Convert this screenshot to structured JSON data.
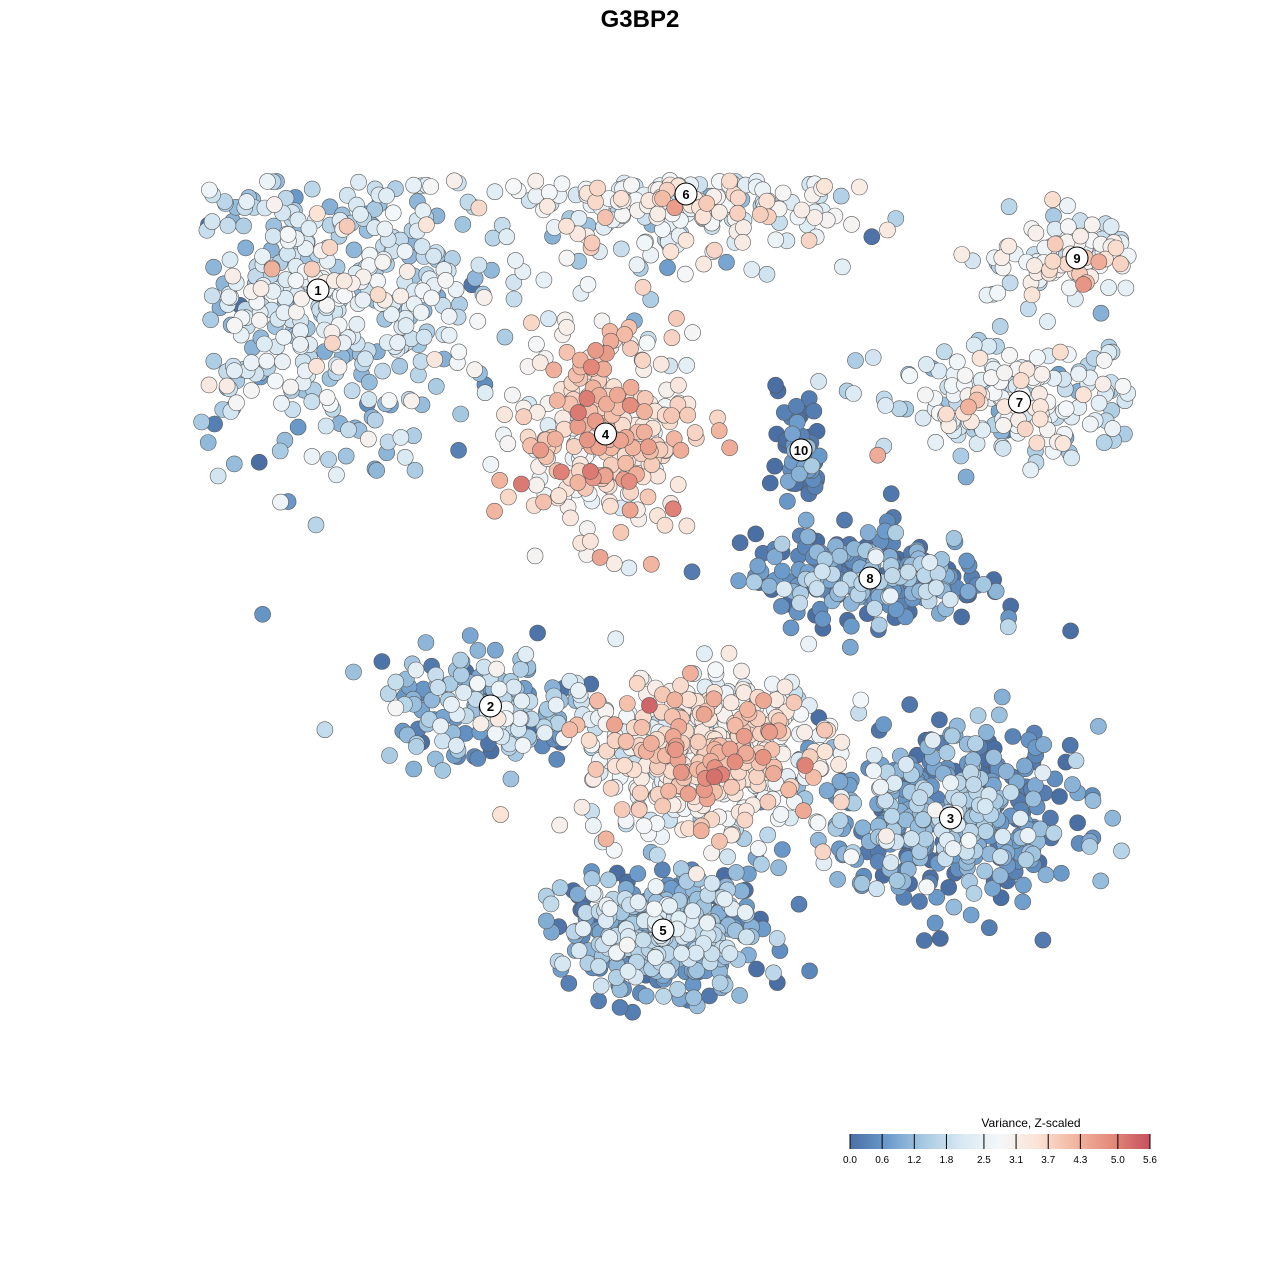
{
  "chart_data": {
    "type": "scatter",
    "title": "G3BP2",
    "xlabel": "",
    "ylabel": "",
    "grid": false,
    "axes_visible": false,
    "color_scale": {
      "title": "Variance, Z-scaled",
      "min": 0.0,
      "max": 5.6,
      "ticks": [
        "0.0",
        "0.6",
        "1.2",
        "1.8",
        "2.5",
        "3.1",
        "3.7",
        "4.3",
        "5.0",
        "5.6"
      ],
      "colors": [
        "#4a6fa5",
        "#6b9bcb",
        "#a9cbe3",
        "#d9e9f3",
        "#f4f7f9",
        "#fbe3d6",
        "#f2b6a0",
        "#e3897a",
        "#c6505d"
      ]
    },
    "legend_position": "bottom-right",
    "clusters": [
      {
        "label": "1",
        "x": -2.8,
        "y": 2.0,
        "value_mean": 2.2,
        "spread": [
          2.0,
          1.2
        ],
        "n": 520
      },
      {
        "label": "6",
        "x": 0.4,
        "y": 2.6,
        "value_mean": 2.8,
        "spread": [
          1.6,
          0.5
        ],
        "n": 330
      },
      {
        "label": "4",
        "x": -0.3,
        "y": 1.1,
        "value_mean": 3.8,
        "spread": [
          0.9,
          0.75
        ],
        "n": 280
      },
      {
        "label": "10",
        "x": 1.4,
        "y": 1.0,
        "value_mean": 0.5,
        "spread": [
          0.25,
          0.45
        ],
        "n": 60
      },
      {
        "label": "9",
        "x": 3.8,
        "y": 2.2,
        "value_mean": 3.0,
        "spread": [
          1.0,
          0.35
        ],
        "n": 110
      },
      {
        "label": "7",
        "x": 3.3,
        "y": 1.3,
        "value_mean": 2.6,
        "spread": [
          1.4,
          0.4
        ],
        "n": 200
      },
      {
        "label": "8",
        "x": 2.0,
        "y": 0.2,
        "value_mean": 1.0,
        "spread": [
          1.2,
          0.35
        ],
        "n": 230
      },
      {
        "label": "2",
        "x": -1.3,
        "y": -0.6,
        "value_mean": 1.6,
        "spread": [
          1.2,
          0.4
        ],
        "n": 170
      },
      {
        "label": "3",
        "x": 2.7,
        "y": -1.3,
        "value_mean": 1.1,
        "spread": [
          1.3,
          0.65
        ],
        "n": 420
      },
      {
        "label": "5",
        "x": 0.2,
        "y": -2.0,
        "value_mean": 1.4,
        "spread": [
          1.0,
          0.45
        ],
        "n": 380
      },
      {
        "label": "",
        "x": 0.6,
        "y": -0.9,
        "value_mean": 3.4,
        "spread": [
          1.3,
          0.6
        ],
        "n": 520
      }
    ]
  }
}
